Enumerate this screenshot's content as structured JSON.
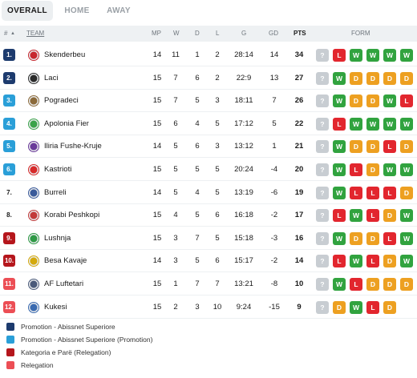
{
  "tabs": [
    {
      "label": "OVERALL",
      "active": true
    },
    {
      "label": "HOME",
      "active": false
    },
    {
      "label": "AWAY",
      "active": false
    }
  ],
  "header": {
    "rank": "#",
    "sort_arrow": "▲",
    "team": "TEAM",
    "mp": "MP",
    "w": "W",
    "d": "D",
    "l": "L",
    "g": "G",
    "gd": "GD",
    "pts": "PTS",
    "form": "FORM"
  },
  "colors": {
    "promotion": "#1d3b6e",
    "promotion_playoff": "#2a9fd8",
    "relegation_playoff": "#b5161c",
    "relegation": "#ec4e55",
    "win": "#31a33f",
    "draw": "#eda021",
    "loss": "#e2262e",
    "unknown": "#c8cdd2"
  },
  "rows": [
    {
      "rank": "1.",
      "zone": "promotion",
      "team": "Skenderbeu",
      "logo": "#c7282f",
      "mp": "14",
      "w": "11",
      "d": "1",
      "l": "2",
      "g": "28:14",
      "gd": "14",
      "pts": "34",
      "form": [
        "?",
        "L",
        "W",
        "W",
        "W",
        "W"
      ]
    },
    {
      "rank": "2.",
      "zone": "promotion",
      "team": "Laci",
      "logo": "#2b2b2b",
      "mp": "15",
      "w": "7",
      "d": "6",
      "l": "2",
      "g": "22:9",
      "gd": "13",
      "pts": "27",
      "form": [
        "?",
        "W",
        "D",
        "D",
        "D",
        "D"
      ]
    },
    {
      "rank": "3.",
      "zone": "promotion_playoff",
      "team": "Pogradeci",
      "logo": "#8b6a3a",
      "mp": "15",
      "w": "7",
      "d": "5",
      "l": "3",
      "g": "18:11",
      "gd": "7",
      "pts": "26",
      "form": [
        "?",
        "W",
        "D",
        "D",
        "W",
        "L"
      ]
    },
    {
      "rank": "4.",
      "zone": "promotion_playoff",
      "team": "Apolonia Fier",
      "logo": "#3aa34a",
      "mp": "15",
      "w": "6",
      "d": "4",
      "l": "5",
      "g": "17:12",
      "gd": "5",
      "pts": "22",
      "form": [
        "?",
        "L",
        "W",
        "W",
        "W",
        "W"
      ]
    },
    {
      "rank": "5.",
      "zone": "promotion_playoff",
      "team": "Iliria Fushe-Kruje",
      "logo": "#6a3a9a",
      "mp": "14",
      "w": "5",
      "d": "6",
      "l": "3",
      "g": "13:12",
      "gd": "1",
      "pts": "21",
      "form": [
        "?",
        "W",
        "D",
        "D",
        "L",
        "D"
      ]
    },
    {
      "rank": "6.",
      "zone": "promotion_playoff",
      "team": "Kastrioti",
      "logo": "#d72a2a",
      "mp": "15",
      "w": "5",
      "d": "5",
      "l": "5",
      "g": "20:24",
      "gd": "-4",
      "pts": "20",
      "form": [
        "?",
        "W",
        "L",
        "D",
        "W",
        "W"
      ]
    },
    {
      "rank": "7.",
      "zone": "none",
      "team": "Burreli",
      "logo": "#3a5a9a",
      "mp": "14",
      "w": "5",
      "d": "4",
      "l": "5",
      "g": "13:19",
      "gd": "-6",
      "pts": "19",
      "form": [
        "?",
        "W",
        "L",
        "L",
        "L",
        "D"
      ]
    },
    {
      "rank": "8.",
      "zone": "none",
      "team": "Korabi Peshkopi",
      "logo": "#c23a3a",
      "mp": "15",
      "w": "4",
      "d": "5",
      "l": "6",
      "g": "16:18",
      "gd": "-2",
      "pts": "17",
      "form": [
        "?",
        "L",
        "W",
        "L",
        "D",
        "W"
      ]
    },
    {
      "rank": "9.",
      "zone": "relegation_playoff",
      "team": "Lushnja",
      "logo": "#2f9a46",
      "mp": "15",
      "w": "3",
      "d": "7",
      "l": "5",
      "g": "15:18",
      "gd": "-3",
      "pts": "16",
      "form": [
        "?",
        "W",
        "D",
        "D",
        "L",
        "W"
      ]
    },
    {
      "rank": "10.",
      "zone": "relegation_playoff",
      "team": "Besa Kavaje",
      "logo": "#d4a90c",
      "mp": "14",
      "w": "3",
      "d": "5",
      "l": "6",
      "g": "15:17",
      "gd": "-2",
      "pts": "14",
      "form": [
        "?",
        "L",
        "W",
        "L",
        "D",
        "W"
      ]
    },
    {
      "rank": "11.",
      "zone": "relegation",
      "team": "AF Luftetari",
      "logo": "#4a5a7a",
      "mp": "15",
      "w": "1",
      "d": "7",
      "l": "7",
      "g": "13:21",
      "gd": "-8",
      "pts": "10",
      "form": [
        "?",
        "W",
        "L",
        "D",
        "D",
        "D"
      ]
    },
    {
      "rank": "12.",
      "zone": "relegation",
      "team": "Kukesi",
      "logo": "#3a6ab0",
      "mp": "15",
      "w": "2",
      "d": "3",
      "l": "10",
      "g": "9:24",
      "gd": "-15",
      "pts": "9",
      "form": [
        "?",
        "D",
        "W",
        "L",
        "D"
      ]
    }
  ],
  "legend": [
    {
      "label": "Promotion - Abissnet Superiore",
      "zone": "promotion"
    },
    {
      "label": "Promotion - Abissnet Superiore (Promotion)",
      "zone": "promotion_playoff"
    },
    {
      "label": "Kategoria e Parë (Relegation)",
      "zone": "relegation_playoff"
    },
    {
      "label": "Relegation",
      "zone": "relegation"
    }
  ]
}
